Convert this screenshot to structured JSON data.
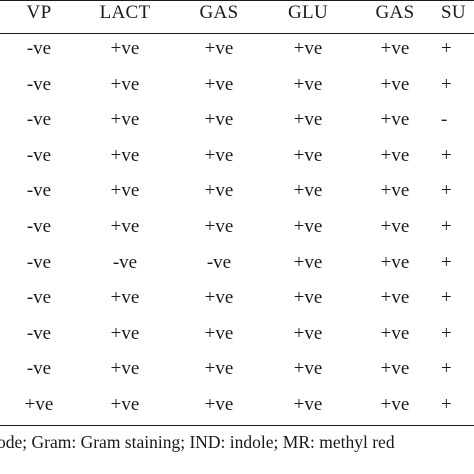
{
  "table": {
    "headers": [
      "VP",
      "LACT",
      "GAS",
      "GLU",
      "GAS",
      "SU"
    ],
    "rows": [
      [
        "-ve",
        "+ve",
        "+ve",
        "+ve",
        "+ve",
        "+"
      ],
      [
        "-ve",
        "+ve",
        "+ve",
        "+ve",
        "+ve",
        "+"
      ],
      [
        "-ve",
        "+ve",
        "+ve",
        "+ve",
        "+ve",
        "-"
      ],
      [
        "-ve",
        "+ve",
        "+ve",
        "+ve",
        "+ve",
        "+"
      ],
      [
        "-ve",
        "+ve",
        "+ve",
        "+ve",
        "+ve",
        "+"
      ],
      [
        "-ve",
        "+ve",
        "+ve",
        "+ve",
        "+ve",
        "+"
      ],
      [
        "-ve",
        "-ve",
        "-ve",
        "+ve",
        "+ve",
        "+"
      ],
      [
        "-ve",
        "+ve",
        "+ve",
        "+ve",
        "+ve",
        "+"
      ],
      [
        "-ve",
        "+ve",
        "+ve",
        "+ve",
        "+ve",
        "+"
      ],
      [
        "-ve",
        "+ve",
        "+ve",
        "+ve",
        "+ve",
        "+"
      ],
      [
        "+ve",
        "+ve",
        "+ve",
        "+ve",
        "+ve",
        "+"
      ]
    ]
  },
  "footnote": "ode; Gram: Gram staining; IND: indole; MR: methyl red"
}
